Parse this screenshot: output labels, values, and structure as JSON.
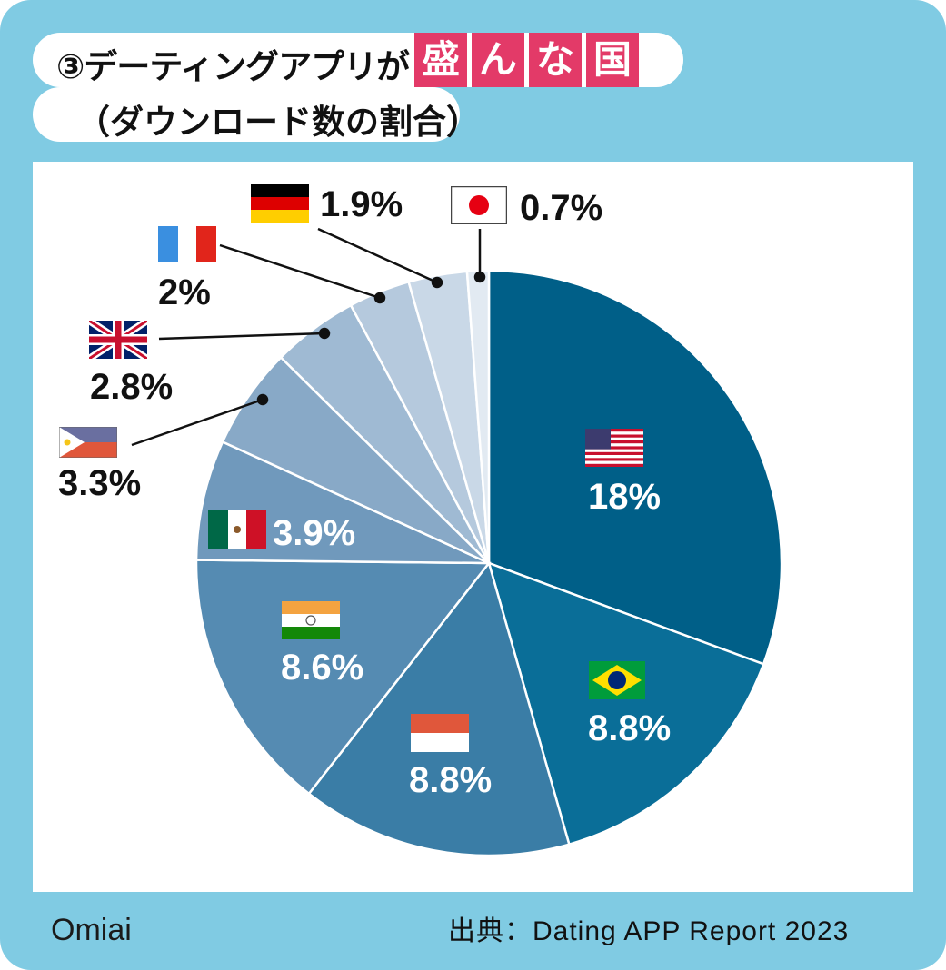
{
  "header": {
    "title_prefix": "③デーティングアプリが",
    "title_highlight": [
      "盛",
      "ん",
      "な",
      "国"
    ],
    "subtitle": "（ダウンロード数の割合）",
    "highlight_color": "#e33a68"
  },
  "chart_data": {
    "type": "pie",
    "start": "top",
    "direction": "clockwise",
    "slices": [
      {
        "flag": "usa-flag",
        "value": 18,
        "label": "18%",
        "color": "#005f88"
      },
      {
        "flag": "brazil-flag",
        "value": 8.8,
        "label": "8.8%",
        "color": "#0a6e98"
      },
      {
        "flag": "indonesia-flag",
        "value": 8.8,
        "label": "8.8%",
        "color": "#3a7da6"
      },
      {
        "flag": "india-flag",
        "value": 8.6,
        "label": "8.6%",
        "color": "#558bb2"
      },
      {
        "flag": "mexico-flag",
        "value": 3.9,
        "label": "3.9%",
        "color": "#7099bc"
      },
      {
        "flag": "philippines-flag",
        "value": 3.3,
        "label": "3.3%",
        "color": "#88a9c7"
      },
      {
        "flag": "uk-flag",
        "value": 2.8,
        "label": "2.8%",
        "color": "#9fbad3"
      },
      {
        "flag": "france-flag",
        "value": 2,
        "label": "2%",
        "color": "#b5c9dd"
      },
      {
        "flag": "germany-flag",
        "value": 1.9,
        "label": "1.9%",
        "color": "#c9d8e7"
      },
      {
        "flag": "japan-flag",
        "value": 0.7,
        "label": "0.7%",
        "color": "#e2eaf2"
      }
    ]
  },
  "footer": {
    "source": "出典：Dating APP Report 2023",
    "logo": "Omiai"
  },
  "colors": {
    "background": "#80cbe3",
    "panel": "#ffffff"
  }
}
